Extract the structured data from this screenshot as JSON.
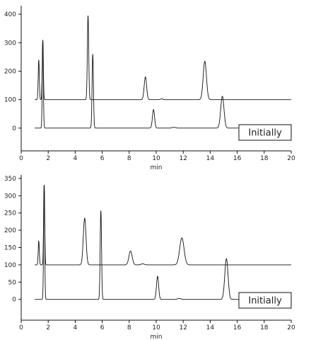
{
  "chart_data": [
    {
      "type": "line",
      "xlabel": "min",
      "ylabel": "",
      "xlim": [
        0,
        20
      ],
      "ylim": [
        -80,
        430
      ],
      "xticks": [
        0,
        2,
        4,
        6,
        8,
        10,
        12,
        14,
        16,
        18,
        20
      ],
      "yticks": [
        0,
        100,
        200,
        300,
        400
      ],
      "grid": false,
      "legend": {
        "text": "Initially",
        "placement": "lower-right"
      },
      "series": [
        {
          "baseline": 100,
          "peaks": [
            {
              "x": 1.3,
              "y": 240,
              "width": 0.04
            },
            {
              "x": 1.6,
              "y": 310,
              "width": 0.04
            },
            {
              "x": 4.95,
              "y": 395,
              "width": 0.05
            },
            {
              "x": 9.2,
              "y": 180,
              "width": 0.09
            },
            {
              "x": 10.4,
              "y": 103,
              "width": 0.08
            },
            {
              "x": 13.6,
              "y": 235,
              "width": 0.12
            }
          ]
        },
        {
          "baseline": 0,
          "peaks": [
            {
              "x": 1.6,
              "y": 310,
              "width": 0.04
            },
            {
              "x": 5.3,
              "y": 260,
              "width": 0.05
            },
            {
              "x": 9.8,
              "y": 65,
              "width": 0.08
            },
            {
              "x": 11.3,
              "y": 3,
              "width": 0.12
            },
            {
              "x": 14.9,
              "y": 112,
              "width": 0.12
            }
          ]
        }
      ]
    },
    {
      "type": "line",
      "xlabel": "min",
      "ylabel": "",
      "xlim": [
        0,
        20
      ],
      "ylim": [
        -60,
        360
      ],
      "xticks": [
        0,
        2,
        4,
        6,
        8,
        10,
        12,
        14,
        16,
        18,
        20
      ],
      "yticks": [
        0,
        50,
        100,
        150,
        200,
        250,
        300,
        350
      ],
      "grid": false,
      "legend": {
        "text": "Initially",
        "placement": "lower-right"
      },
      "series": [
        {
          "baseline": 100,
          "peaks": [
            {
              "x": 1.3,
              "y": 170,
              "width": 0.04
            },
            {
              "x": 1.7,
              "y": 333,
              "width": 0.04
            },
            {
              "x": 4.7,
              "y": 235,
              "width": 0.1
            },
            {
              "x": 8.1,
              "y": 140,
              "width": 0.12
            },
            {
              "x": 9.0,
              "y": 103,
              "width": 0.12
            },
            {
              "x": 11.9,
              "y": 178,
              "width": 0.16
            }
          ]
        },
        {
          "baseline": 0,
          "peaks": [
            {
              "x": 1.7,
              "y": 333,
              "width": 0.04
            },
            {
              "x": 5.9,
              "y": 257,
              "width": 0.05
            },
            {
              "x": 10.1,
              "y": 67,
              "width": 0.08
            },
            {
              "x": 11.7,
              "y": 3,
              "width": 0.12
            },
            {
              "x": 15.2,
              "y": 118,
              "width": 0.12
            }
          ]
        }
      ]
    }
  ]
}
